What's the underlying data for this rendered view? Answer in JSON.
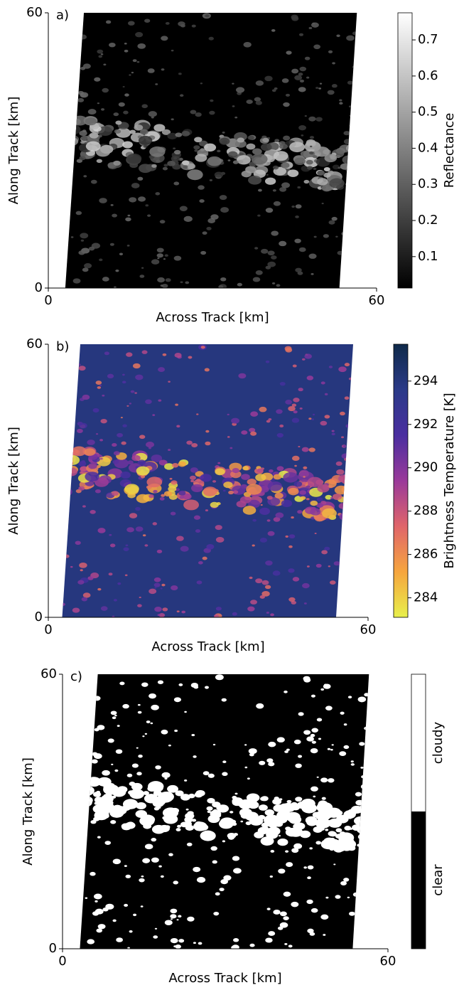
{
  "chart_data": [
    {
      "type": "image",
      "panel_label": "a)",
      "xlabel": "Across Track [km]",
      "ylabel": "Along Track [km]",
      "xlim": [
        0,
        60
      ],
      "ylim": [
        0,
        60
      ],
      "xticks": [
        0,
        60
      ],
      "yticks": [
        0,
        60
      ],
      "colorbar": {
        "label": "Reflectance",
        "lim": [
          0.013,
          0.775
        ],
        "ticks": [
          0.1,
          0.2,
          0.3,
          0.4,
          0.5,
          0.6,
          0.7
        ],
        "colors": [
          "#000000",
          "#ffffff"
        ]
      }
    },
    {
      "type": "image",
      "panel_label": "b)",
      "xlabel": "Across Track [km]",
      "ylabel": "Along Track [km]",
      "xlim": [
        0,
        60
      ],
      "ylim": [
        0,
        60
      ],
      "xticks": [
        0,
        60
      ],
      "yticks": [
        0,
        60
      ],
      "colorbar": {
        "label": "Brightness Temperature [K]",
        "lim": [
          283.1,
          295.7
        ],
        "ticks": [
          284,
          286,
          288,
          290,
          292,
          294
        ],
        "colors": [
          "#e8f04c",
          "#f6a53e",
          "#e0656a",
          "#9a3a9a",
          "#4a2ea0",
          "#2a3a88",
          "#0f2a4a"
        ]
      }
    },
    {
      "type": "image",
      "panel_label": "c)",
      "xlabel": "Across Track [km]",
      "ylabel": "Along Track [km]",
      "xlim": [
        0,
        60
      ],
      "ylim": [
        0,
        60
      ],
      "xticks": [
        0,
        60
      ],
      "yticks": [
        0,
        60
      ],
      "colorbar": {
        "categories": [
          "clear",
          "cloudy"
        ],
        "colors": [
          "#000000",
          "#ffffff"
        ]
      }
    }
  ]
}
